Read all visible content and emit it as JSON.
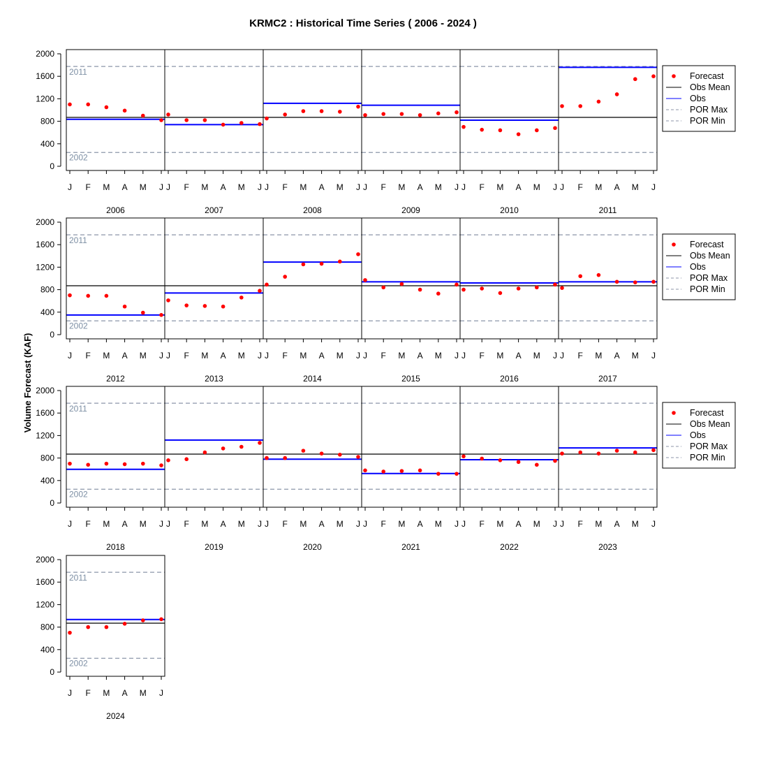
{
  "chart_data": {
    "type": "scatter",
    "title": "KRMC2 : Historical Time Series ( 2006 - 2024 )",
    "ylabel": "Volume Forecast (KAF)",
    "ylim": [
      0,
      2000
    ],
    "yticks": [
      0,
      400,
      800,
      1200,
      1600,
      2000
    ],
    "month_labels": [
      "J",
      "F",
      "M",
      "A",
      "M",
      "J"
    ],
    "obs_mean": 870,
    "por_max": {
      "value": 1775,
      "label": "2011"
    },
    "por_min": {
      "value": 245,
      "label": "2002"
    },
    "legend": {
      "placement": "right of each row",
      "entries": [
        {
          "key": "forecast",
          "label": "Forecast"
        },
        {
          "key": "obs_mean",
          "label": "Obs Mean"
        },
        {
          "key": "obs",
          "label": "Obs"
        },
        {
          "key": "por_max",
          "label": "POR Max"
        },
        {
          "key": "por_min",
          "label": "POR Min"
        }
      ]
    },
    "colors": {
      "forecast": "#ff0000",
      "obs": "#0000ff",
      "obs_mean": "#000000",
      "por_lines": "#8c96aa",
      "por_text": "#7d8fa4"
    },
    "years": [
      {
        "year": "2006",
        "obs": 835,
        "forecast": [
          1100,
          1100,
          1050,
          990,
          900,
          820
        ]
      },
      {
        "year": "2007",
        "obs": 740,
        "forecast": [
          920,
          820,
          820,
          740,
          770,
          750
        ]
      },
      {
        "year": "2008",
        "obs": 1120,
        "forecast": [
          850,
          920,
          980,
          980,
          970,
          1060
        ]
      },
      {
        "year": "2009",
        "obs": 1085,
        "forecast": [
          910,
          930,
          930,
          910,
          940,
          960
        ]
      },
      {
        "year": "2010",
        "obs": 820,
        "forecast": [
          700,
          650,
          640,
          570,
          640,
          680
        ]
      },
      {
        "year": "2011",
        "obs": 1760,
        "forecast": [
          1070,
          1070,
          1150,
          1280,
          1550,
          1600
        ]
      },
      {
        "year": "2012",
        "obs": 350,
        "forecast": [
          700,
          690,
          690,
          500,
          390,
          350
        ]
      },
      {
        "year": "2013",
        "obs": 740,
        "forecast": [
          610,
          520,
          510,
          500,
          660,
          780
        ]
      },
      {
        "year": "2014",
        "obs": 1290,
        "forecast": [
          890,
          1030,
          1250,
          1260,
          1300,
          1430
        ]
      },
      {
        "year": "2015",
        "obs": 940,
        "forecast": [
          970,
          840,
          900,
          800,
          730,
          890
        ]
      },
      {
        "year": "2016",
        "obs": 920,
        "forecast": [
          800,
          820,
          740,
          820,
          840,
          890
        ]
      },
      {
        "year": "2017",
        "obs": 940,
        "forecast": [
          830,
          1040,
          1060,
          940,
          930,
          940
        ]
      },
      {
        "year": "2018",
        "obs": 600,
        "forecast": [
          700,
          680,
          700,
          690,
          700,
          670
        ]
      },
      {
        "year": "2019",
        "obs": 1120,
        "forecast": [
          760,
          780,
          900,
          970,
          1000,
          1070
        ]
      },
      {
        "year": "2020",
        "obs": 780,
        "forecast": [
          800,
          800,
          930,
          880,
          860,
          820
        ]
      },
      {
        "year": "2021",
        "obs": 525,
        "forecast": [
          580,
          560,
          570,
          580,
          520,
          520
        ]
      },
      {
        "year": "2022",
        "obs": 770,
        "forecast": [
          830,
          790,
          760,
          730,
          680,
          750
        ]
      },
      {
        "year": "2023",
        "obs": 980,
        "forecast": [
          880,
          900,
          880,
          930,
          900,
          940
        ]
      },
      {
        "year": "2024",
        "obs": 935,
        "forecast": [
          700,
          800,
          800,
          860,
          920,
          940
        ]
      }
    ]
  }
}
